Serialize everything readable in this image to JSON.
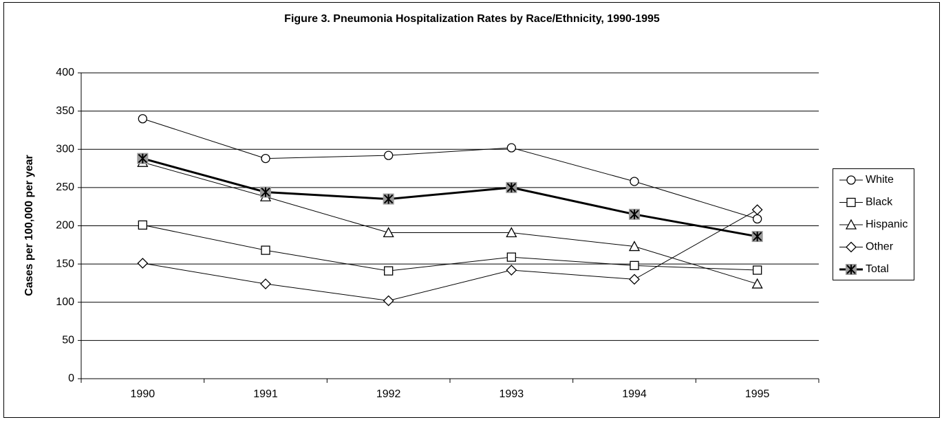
{
  "chart_data": {
    "type": "line",
    "title": "Figure 3.  Pneumonia Hospitalization Rates by Race/Ethnicity, 1990-1995",
    "y_label": "Cases per 100,000 per year",
    "categories": [
      "1990",
      "1991",
      "1992",
      "1993",
      "1994",
      "1995"
    ],
    "ylim": [
      0,
      400
    ],
    "yticks": [
      0,
      50,
      100,
      150,
      200,
      250,
      300,
      350,
      400
    ],
    "grid": true,
    "legend": "right",
    "series": [
      {
        "name": "White",
        "color": "#000000",
        "marker": "circle",
        "values": [
          340,
          288,
          292,
          302,
          258,
          209
        ]
      },
      {
        "name": "Black",
        "color": "#000000",
        "marker": "square",
        "values": [
          201,
          168,
          141,
          159,
          148,
          142
        ]
      },
      {
        "name": "Hispanic",
        "color": "#000000",
        "marker": "triangle",
        "values": [
          283,
          238,
          191,
          191,
          173,
          124
        ]
      },
      {
        "name": "Other",
        "color": "#000000",
        "marker": "diamond",
        "values": [
          151,
          124,
          102,
          142,
          130,
          221
        ]
      },
      {
        "name": "Total",
        "color": "#000000",
        "marker": "star-square",
        "values": [
          288,
          244,
          235,
          250,
          215,
          186
        ]
      }
    ]
  }
}
